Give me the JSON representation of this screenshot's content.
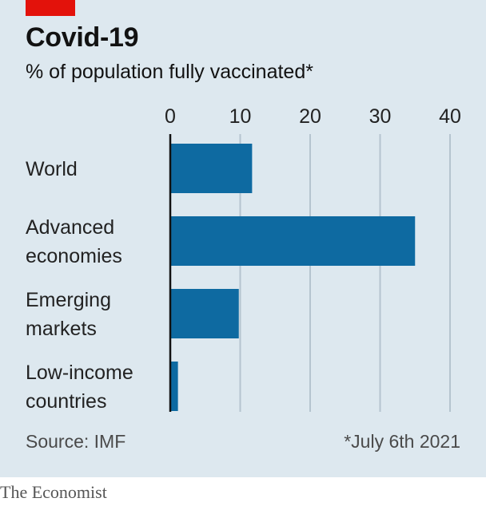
{
  "header": {
    "title": "Covid-19",
    "subtitle": "% of population fully vaccinated*"
  },
  "chart_data": {
    "type": "bar",
    "orientation": "horizontal",
    "categories": [
      [
        "World"
      ],
      [
        "Advanced",
        "economies"
      ],
      [
        "Emerging",
        "markets"
      ],
      [
        "Low-income",
        "countries"
      ]
    ],
    "values": [
      11.7,
      35,
      9.8,
      1.1
    ],
    "xlim": [
      0,
      40
    ],
    "xticks": [
      0,
      10,
      20,
      30,
      40
    ],
    "tick_labels": [
      "0",
      "10",
      "20",
      "30",
      "40"
    ],
    "axis_position": "top",
    "grid": true,
    "bar_color": "#0e6aa1",
    "grid_color": "#b5c4cf",
    "baseline_color": "#121212"
  },
  "footer": {
    "source": "Source: IMF",
    "note": "*July 6th 2021"
  },
  "brand": "The Economist",
  "colors": {
    "background": "#dde8ef",
    "accent": "#e3120b"
  }
}
